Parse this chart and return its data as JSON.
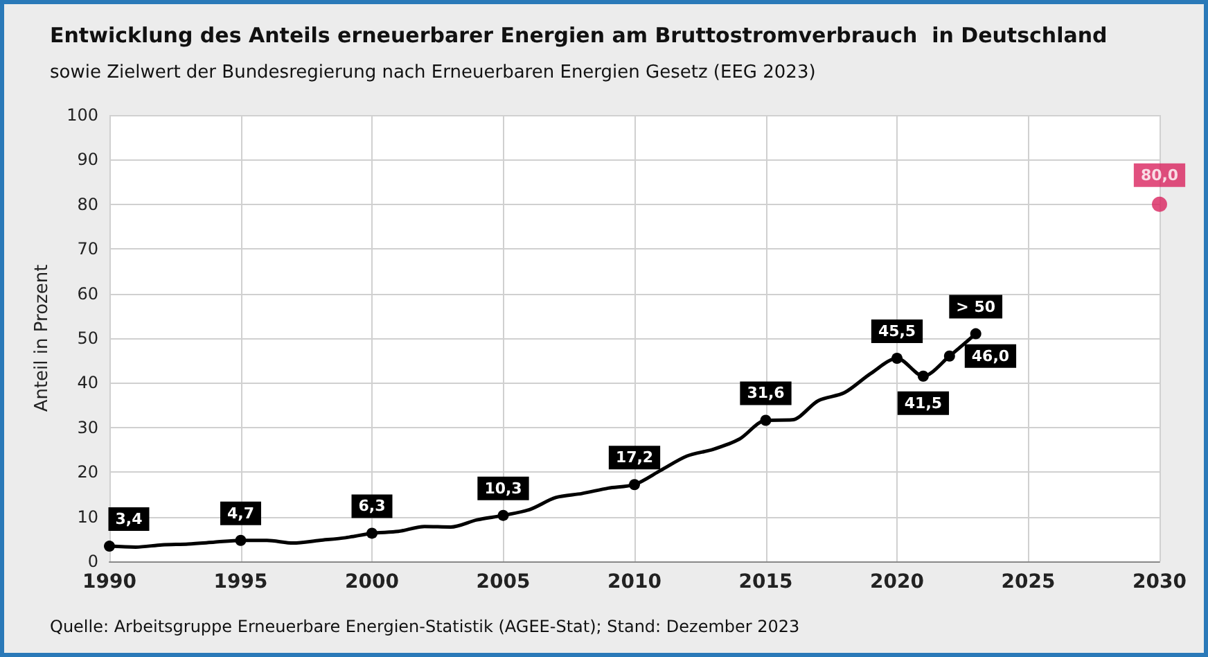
{
  "chart_data": {
    "type": "line",
    "title": "Entwicklung des Anteils erneuerbarer Energien am Bruttostromverbrauch  in Deutschland",
    "subtitle": "sowie Zielwert der Bundesregierung nach Erneuerbaren Energien Gesetz (EEG 2023)",
    "ylabel": "Anteil in Prozent",
    "annotations": [
      "Quelle: Arbeitsgruppe Erneuerbare Energien-Statistik (AGEE-Stat); Stand: Dezember 2023"
    ],
    "xlim": [
      1990,
      2030
    ],
    "xticks": [
      1990,
      1995,
      2000,
      2005,
      2010,
      2015,
      2020,
      2025,
      2030
    ],
    "ylim": [
      0,
      100
    ],
    "yticks": [
      0,
      10,
      20,
      30,
      40,
      50,
      60,
      70,
      80,
      90,
      100
    ],
    "grid": true,
    "series": [
      {
        "color": "#000000",
        "x": [
          1990,
          1991,
          1992,
          1993,
          1994,
          1995,
          1996,
          1997,
          1998,
          1999,
          2000,
          2001,
          2002,
          2003,
          2004,
          2005,
          2006,
          2007,
          2008,
          2009,
          2010,
          2011,
          2012,
          2013,
          2014,
          2015,
          2016,
          2017,
          2018,
          2019,
          2020,
          2021,
          2022,
          2023
        ],
        "values": [
          3.4,
          3.2,
          3.7,
          3.9,
          4.3,
          4.7,
          4.7,
          4.1,
          4.7,
          5.3,
          6.3,
          6.7,
          7.8,
          7.7,
          9.3,
          10.3,
          11.6,
          14.3,
          15.2,
          16.4,
          17.2,
          20.4,
          23.6,
          25.1,
          27.4,
          31.6,
          31.7,
          36.0,
          37.8,
          42.1,
          45.5,
          41.5,
          46.0,
          51
        ],
        "value_labels": [
          "3,4",
          null,
          null,
          null,
          null,
          "4,7",
          null,
          null,
          null,
          null,
          "6,3",
          null,
          null,
          null,
          null,
          "10,3",
          null,
          null,
          null,
          null,
          "17,2",
          null,
          null,
          null,
          null,
          "31,6",
          null,
          null,
          null,
          null,
          "45,5",
          "41,5",
          "46,0",
          "> 50"
        ]
      },
      {
        "type": "scatter",
        "color": "#d9245f",
        "x": [
          2030
        ],
        "values": [
          80.0
        ],
        "value_labels": [
          "80,0"
        ]
      }
    ]
  }
}
